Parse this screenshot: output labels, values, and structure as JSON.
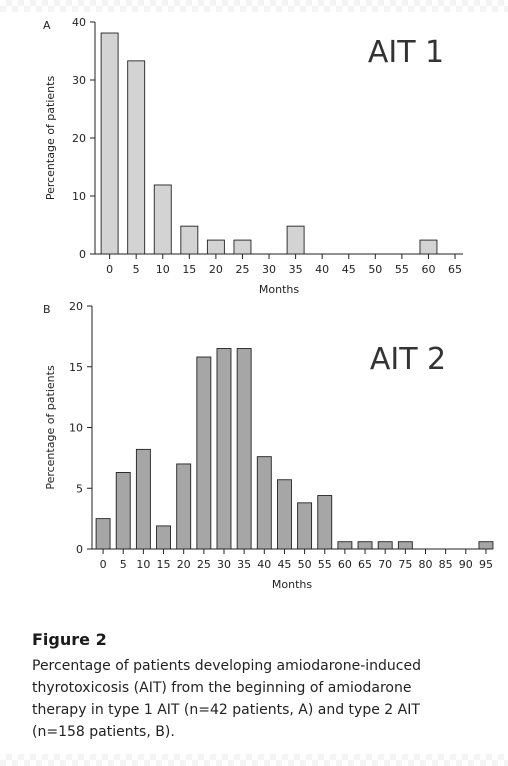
{
  "chart_data": [
    {
      "type": "bar",
      "panel_label": "A",
      "title": "AIT 1",
      "xlabel": "Months",
      "ylabel": "Percentage of patients",
      "ylim": [
        0,
        40
      ],
      "yticks": [
        0,
        10,
        20,
        30,
        40
      ],
      "xticks": [
        "0",
        "5",
        "10",
        "15",
        "20",
        "25",
        "30",
        "35",
        "40",
        "45",
        "50",
        "55",
        "60",
        "65"
      ],
      "x": [
        0,
        5,
        10,
        15,
        20,
        25,
        35,
        60
      ],
      "values": [
        38.1,
        33.3,
        11.9,
        4.8,
        2.4,
        2.4,
        4.8,
        2.4
      ],
      "bar_color": "#d3d3d3",
      "grid": false
    },
    {
      "type": "bar",
      "panel_label": "B",
      "title": "AIT 2",
      "xlabel": "Months",
      "ylabel": "Percentage of patients",
      "ylim": [
        0,
        20
      ],
      "yticks": [
        0,
        5,
        10,
        15,
        20
      ],
      "xticks": [
        "0",
        "5",
        "10",
        "15",
        "20",
        "25",
        "30",
        "35",
        "40",
        "45",
        "50",
        "55",
        "60",
        "65",
        "70",
        "75",
        "80",
        "85",
        "90",
        "95"
      ],
      "x": [
        0,
        5,
        10,
        15,
        20,
        25,
        30,
        35,
        40,
        45,
        50,
        55,
        60,
        65,
        70,
        75,
        95
      ],
      "values": [
        2.5,
        6.3,
        8.2,
        1.9,
        7.0,
        15.8,
        16.5,
        16.5,
        7.6,
        5.7,
        3.8,
        4.4,
        0.6,
        0.6,
        0.6,
        0.6,
        0.6
      ],
      "bar_color": "#a6a6a6",
      "grid": false
    }
  ],
  "caption": {
    "title": "Figure 2",
    "lines": [
      "Percentage of patients developing amiodarone-induced",
      "thyrotoxicosis (AIT) from the beginning of amiodarone",
      "therapy in type 1 AIT (n=42 patients, A) and type 2 AIT",
      "(n=158 patients, B)."
    ]
  }
}
